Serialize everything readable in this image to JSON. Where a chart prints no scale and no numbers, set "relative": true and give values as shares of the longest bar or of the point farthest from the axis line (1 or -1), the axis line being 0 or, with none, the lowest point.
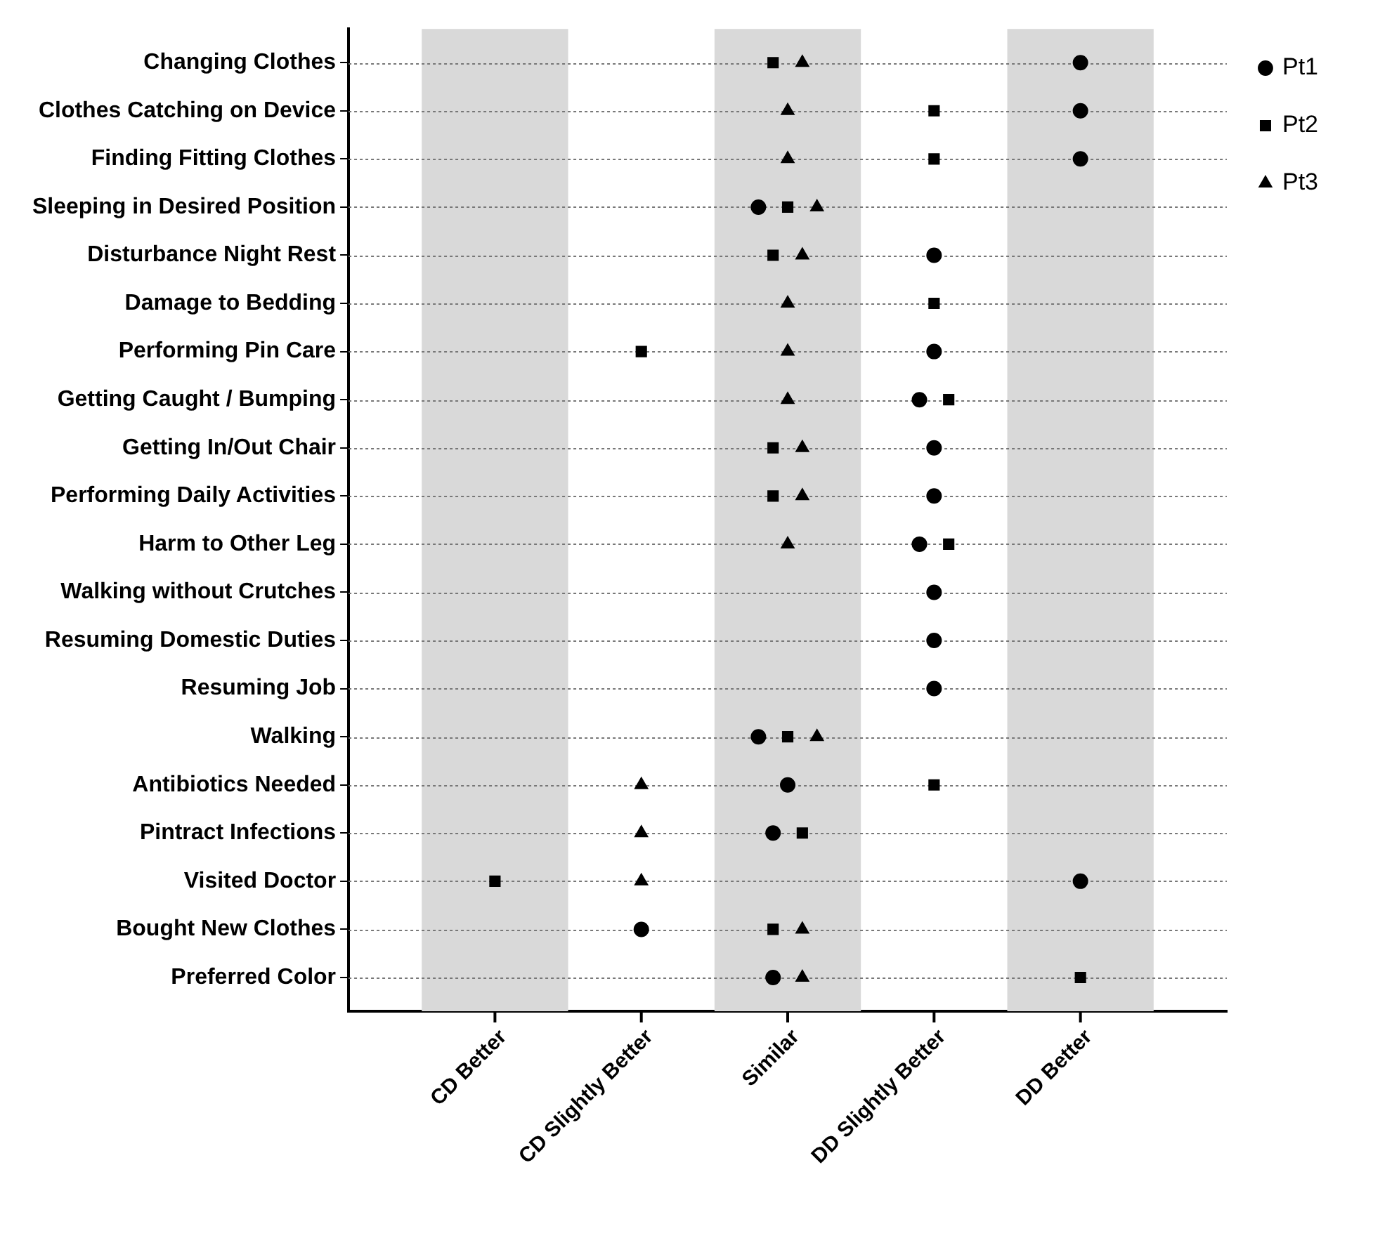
{
  "chart_data": {
    "type": "scatter",
    "orientation": "horizontal",
    "relative": true,
    "categories": [
      "Changing Clothes",
      "Clothes Catching on Device",
      "Finding Fitting Clothes",
      "Sleeping in Desired Position",
      "Disturbance Night Rest",
      "Damage to Bedding",
      "Performing Pin Care",
      "Getting Caught / Bumping",
      "Getting In/Out Chair",
      "Performing Daily Activities",
      "Harm to Other Leg",
      "Walking without Crutches",
      "Resuming Domestic Duties",
      "Resuming Job",
      "Walking",
      "Antibiotics Needed",
      "Pintract Infections",
      "Visited Doctor",
      "Bought New Clothes",
      "Preferred Color"
    ],
    "series": [
      {
        "name": "Pt1",
        "color": "#000000",
        "marker": "circle",
        "values": [
          1,
          1,
          1,
          0.56,
          0.8,
          null,
          0.8,
          0.78,
          0.8,
          0.8,
          0.78,
          0.8,
          0.8,
          0.8,
          0.56,
          0.6,
          0.58,
          1,
          0.4,
          0.58
        ]
      },
      {
        "name": "Pt2",
        "color": "#000000",
        "marker": "square",
        "values": [
          0.58,
          0.8,
          0.8,
          0.6,
          0.58,
          0.8,
          0.4,
          0.82,
          0.58,
          0.58,
          0.82,
          null,
          null,
          null,
          0.6,
          0.8,
          0.62,
          0.2,
          0.58,
          1
        ]
      },
      {
        "name": "Pt3",
        "color": "#000000",
        "marker": "triangle",
        "values": [
          0.62,
          0.6,
          0.6,
          0.64,
          0.62,
          0.6,
          0.6,
          0.6,
          0.62,
          0.62,
          0.6,
          null,
          null,
          null,
          0.64,
          0.4,
          0.4,
          0.4,
          0.62,
          0.62
        ]
      }
    ],
    "annotations": [
      "CD Better",
      "CD Slightly Better",
      "Similar",
      "DD Slightly Better",
      "DD Better"
    ],
    "bands": [
      {
        "axis": "x",
        "from": 0.1,
        "to": 0.3,
        "color": "#d9d9d9"
      },
      {
        "axis": "x",
        "from": 0.5,
        "to": 0.7,
        "color": "#d9d9d9"
      },
      {
        "axis": "x",
        "from": 0.9,
        "to": 1.1,
        "color": "#d9d9d9"
      }
    ],
    "grid": "y",
    "legend": "right"
  }
}
